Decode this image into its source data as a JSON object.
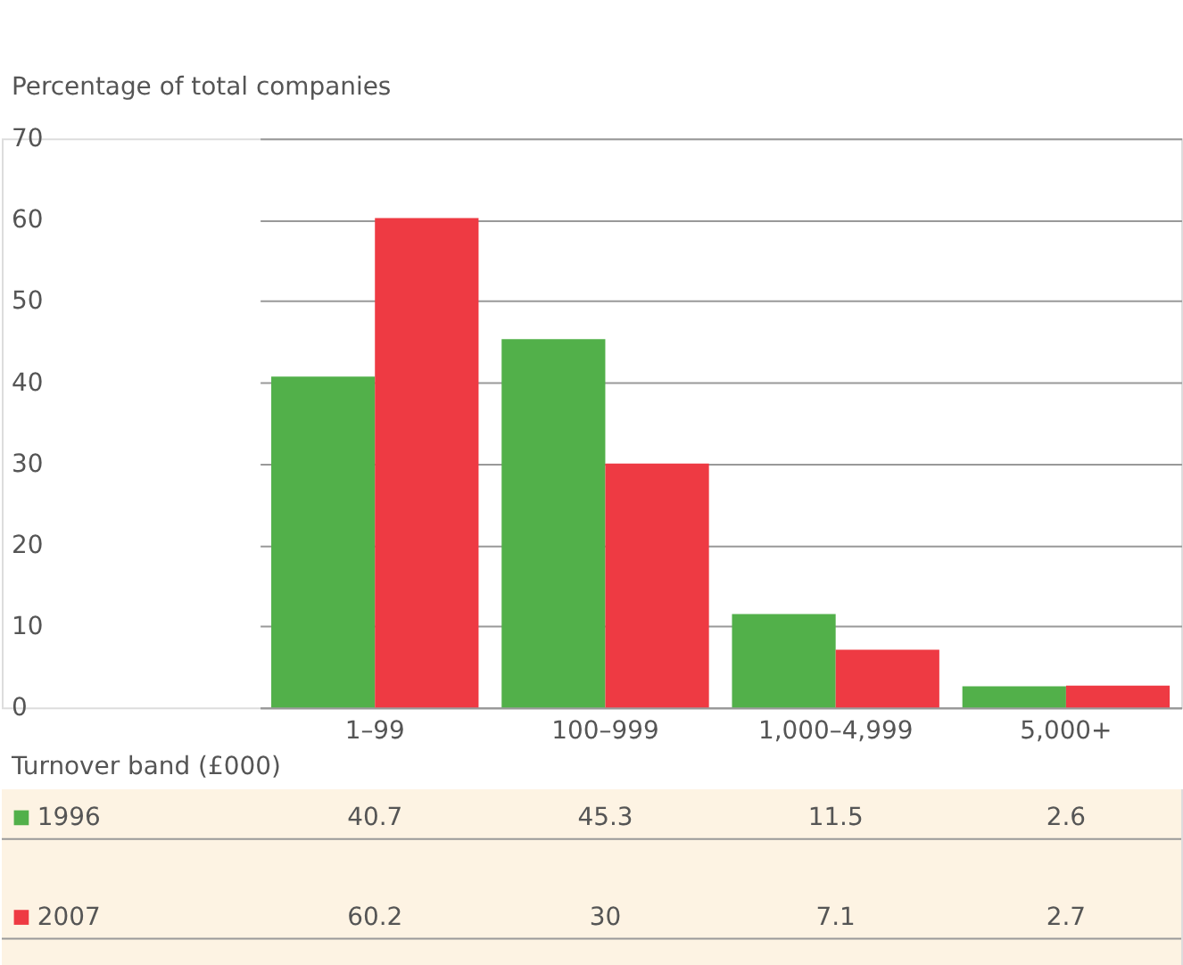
{
  "chart_data": {
    "type": "bar",
    "ylabel": "Percentage of total companies",
    "xlabel": "Turnover band (£000)",
    "categories": [
      "1–99",
      "100–999",
      "1,000–4,999",
      "5,000+"
    ],
    "series": [
      {
        "name": "1996",
        "color": "#52b04a",
        "values": [
          40.7,
          45.3,
          11.5,
          2.6
        ]
      },
      {
        "name": "2007",
        "color": "#ee3a43",
        "values": [
          60.2,
          30,
          7.1,
          2.7
        ]
      }
    ],
    "ylim": [
      0,
      70
    ],
    "yticks": [
      0,
      10,
      20,
      30,
      40,
      50,
      60,
      70
    ],
    "grid": "y",
    "data_labels": true,
    "legend": "bottom"
  }
}
